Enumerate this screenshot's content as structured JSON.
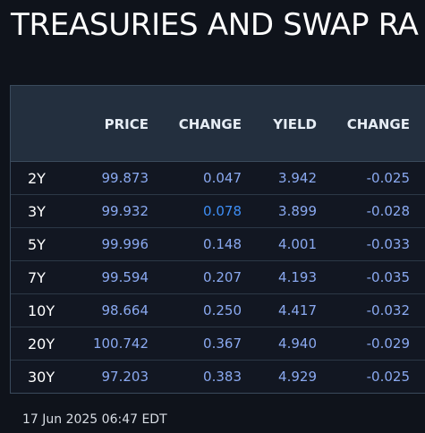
{
  "title": "TREASURIES AND SWAP RA",
  "columns": {
    "price": "PRICE",
    "change": "CHANGE",
    "yield": "YIELD",
    "yield_change": "CHANGE"
  },
  "rows": [
    {
      "tenor": "2Y",
      "price": "99.873",
      "change": "0.047",
      "yield": "3.942",
      "yield_change": "-0.025"
    },
    {
      "tenor": "3Y",
      "price": "99.932",
      "change": "0.078",
      "yield": "3.899",
      "yield_change": "-0.028"
    },
    {
      "tenor": "5Y",
      "price": "99.996",
      "change": "0.148",
      "yield": "4.001",
      "yield_change": "-0.033"
    },
    {
      "tenor": "7Y",
      "price": "99.594",
      "change": "0.207",
      "yield": "4.193",
      "yield_change": "-0.035"
    },
    {
      "tenor": "10Y",
      "price": "98.664",
      "change": "0.250",
      "yield": "4.417",
      "yield_change": "-0.032"
    },
    {
      "tenor": "20Y",
      "price": "100.742",
      "change": "0.367",
      "yield": "4.940",
      "yield_change": "-0.029"
    },
    {
      "tenor": "30Y",
      "price": "97.203",
      "change": "0.383",
      "yield": "4.929",
      "yield_change": "-0.025"
    }
  ],
  "timestamp": "17 Jun 2025 06:47 EDT",
  "colors": {
    "background": "#0f131b",
    "header_bg": "#232f3e",
    "value_text": "#8aa9f0",
    "highlight_text": "#3e8ef5"
  }
}
